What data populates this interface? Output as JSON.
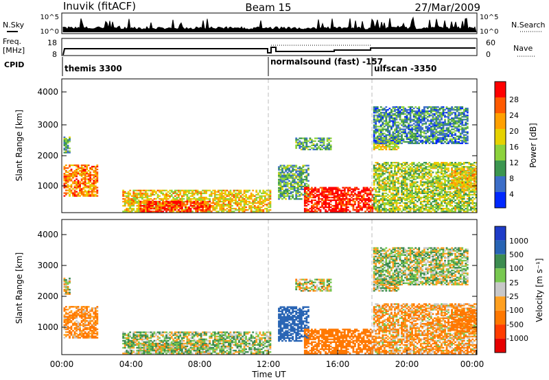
{
  "header": {
    "station": "Inuvik (fitACF)",
    "beam": "Beam 15",
    "date": "27/Mar/2009"
  },
  "top_panels": {
    "nsky_label": "N.Sky",
    "nsky_ticks": [
      "10^5",
      "10^0"
    ],
    "nsearch_label": "N.Search",
    "nsearch_ticks": [
      "10^5",
      "10^0"
    ],
    "freq_label_1": "Freq.",
    "freq_label_2": "[MHz]",
    "freq_ticks": [
      "18",
      "8"
    ],
    "nave_label": "Nave",
    "nave_ticks": [
      "60",
      "0"
    ],
    "cpid_label": "CPID",
    "cpid_segments": [
      {
        "label": "themis 3300",
        "start_hour": 0
      },
      {
        "label": "normalsound (fast) -157",
        "start_hour": 12
      },
      {
        "label": "ulfscan -3350",
        "start_hour": 18
      }
    ]
  },
  "axes": {
    "ylabel": "Slant Range [km]",
    "yticks": [
      "4000",
      "3000",
      "2000",
      "1000"
    ],
    "xticks": [
      "00:00",
      "04:00",
      "08:00",
      "12:00",
      "16:00",
      "20:00",
      "00:00"
    ],
    "xlabel": "Time UT"
  },
  "power_colorbar": {
    "label": "Power [dB]",
    "ticks": [
      "28",
      "24",
      "20",
      "16",
      "12",
      "8",
      "4"
    ],
    "colors": [
      "#ff0000",
      "#ff5a00",
      "#ffa000",
      "#e6d200",
      "#8cd23c",
      "#3c9650",
      "#3c6ec8",
      "#0028ff"
    ]
  },
  "velocity_colorbar": {
    "label": "Velocity [m s⁻¹]",
    "ticks": [
      "1000",
      "500",
      "100",
      "25",
      "-25",
      "-100",
      "-500",
      "-1000"
    ],
    "colors": [
      "#1e3cc8",
      "#2864b4",
      "#3c8c50",
      "#78c850",
      "#c8c8c8",
      "#ffa020",
      "#ff7800",
      "#ff3c00",
      "#e60000"
    ]
  },
  "chart_data": {
    "type": "heatmap",
    "title": "Inuvik (fitACF)",
    "xlabel": "Time UT",
    "ylabel": "Slant Range [km]",
    "xlim_hours": [
      0,
      24
    ],
    "ylim_km": [
      180,
      4500
    ],
    "panels": [
      {
        "name": "Power [dB]",
        "range": [
          0,
          30
        ]
      },
      {
        "name": "Velocity [m s⁻¹]",
        "range": [
          -1000,
          1000
        ]
      }
    ],
    "regions": [
      {
        "t0": 0.1,
        "t1": 2.1,
        "r0": 700,
        "r1": 1700,
        "power": 22,
        "velocity": -150
      },
      {
        "t0": 0.1,
        "t1": 0.5,
        "r0": 2100,
        "r1": 2600,
        "power": 10,
        "velocity": 0
      },
      {
        "t0": 3.5,
        "t1": 12.0,
        "r0": 200,
        "r1": 900,
        "power": 18,
        "velocity": 60
      },
      {
        "t0": 4.5,
        "t1": 8.5,
        "r0": 200,
        "r1": 550,
        "power": 26,
        "velocity": 20
      },
      {
        "t0": 12.5,
        "t1": 14.2,
        "r0": 600,
        "r1": 1700,
        "power": 10,
        "velocity": 700
      },
      {
        "t0": 13.5,
        "t1": 15.5,
        "r0": 2200,
        "r1": 2600,
        "power": 10,
        "velocity": 0
      },
      {
        "t0": 14.0,
        "t1": 18.0,
        "r0": 200,
        "r1": 1000,
        "power": 28,
        "velocity": -300
      },
      {
        "t0": 18.0,
        "t1": 19.5,
        "r0": 2200,
        "r1": 2600,
        "power": 16,
        "velocity": 0
      },
      {
        "t0": 18.0,
        "t1": 24.0,
        "r0": 200,
        "r1": 1800,
        "power": 14,
        "velocity": -100
      },
      {
        "t0": 18.0,
        "t1": 23.5,
        "r0": 2400,
        "r1": 3600,
        "power": 8,
        "velocity": 50
      },
      {
        "t0": 22.5,
        "t1": 24.0,
        "r0": 900,
        "r1": 1600,
        "power": 18,
        "velocity": -300
      }
    ]
  }
}
